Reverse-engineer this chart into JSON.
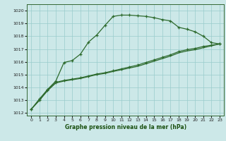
{
  "title": "Graphe pression niveau de la mer (hPa)",
  "bg_color": "#cce8e8",
  "grid_color": "#99cccc",
  "line_color": "#2d6a2d",
  "xlim": [
    -0.5,
    23.5
  ],
  "ylim": [
    1011.8,
    1020.5
  ],
  "yticks": [
    1012,
    1013,
    1014,
    1015,
    1016,
    1017,
    1018,
    1019,
    1020
  ],
  "xticks": [
    0,
    1,
    2,
    3,
    4,
    5,
    6,
    7,
    8,
    9,
    10,
    11,
    12,
    13,
    14,
    15,
    16,
    17,
    18,
    19,
    20,
    21,
    22,
    23
  ],
  "series1_x": [
    0,
    1,
    2,
    3,
    4,
    5,
    6,
    7,
    8,
    9,
    10,
    11,
    12,
    13,
    14,
    15,
    16,
    17,
    18,
    19,
    20,
    21,
    22,
    23
  ],
  "series1_y": [
    1012.3,
    1013.1,
    1013.85,
    1014.5,
    1015.95,
    1016.1,
    1016.6,
    1017.55,
    1018.1,
    1018.85,
    1019.55,
    1019.65,
    1019.65,
    1019.6,
    1019.55,
    1019.45,
    1019.3,
    1019.2,
    1018.7,
    1018.55,
    1018.35,
    1018.0,
    1017.5,
    1017.4
  ],
  "series2_x": [
    0,
    1,
    2,
    3,
    4,
    5,
    6,
    7,
    8,
    9,
    10,
    11,
    12,
    13,
    14,
    15,
    16,
    17,
    18,
    19,
    20,
    21,
    22,
    23
  ],
  "series2_y": [
    1012.3,
    1013.0,
    1013.8,
    1014.4,
    1014.55,
    1014.65,
    1014.75,
    1014.9,
    1015.05,
    1015.15,
    1015.3,
    1015.45,
    1015.6,
    1015.75,
    1015.95,
    1016.15,
    1016.35,
    1016.55,
    1016.8,
    1016.95,
    1017.05,
    1017.2,
    1017.3,
    1017.4
  ],
  "series3_x": [
    0,
    1,
    2,
    3,
    4,
    5,
    6,
    7,
    8,
    9,
    10,
    11,
    12,
    13,
    14,
    15,
    16,
    17,
    18,
    19,
    20,
    21,
    22,
    23
  ],
  "series3_y": [
    1012.3,
    1013.0,
    1013.75,
    1014.35,
    1014.5,
    1014.6,
    1014.7,
    1014.85,
    1015.0,
    1015.1,
    1015.25,
    1015.38,
    1015.52,
    1015.65,
    1015.85,
    1016.05,
    1016.25,
    1016.45,
    1016.7,
    1016.85,
    1016.95,
    1017.1,
    1017.25,
    1017.4
  ]
}
